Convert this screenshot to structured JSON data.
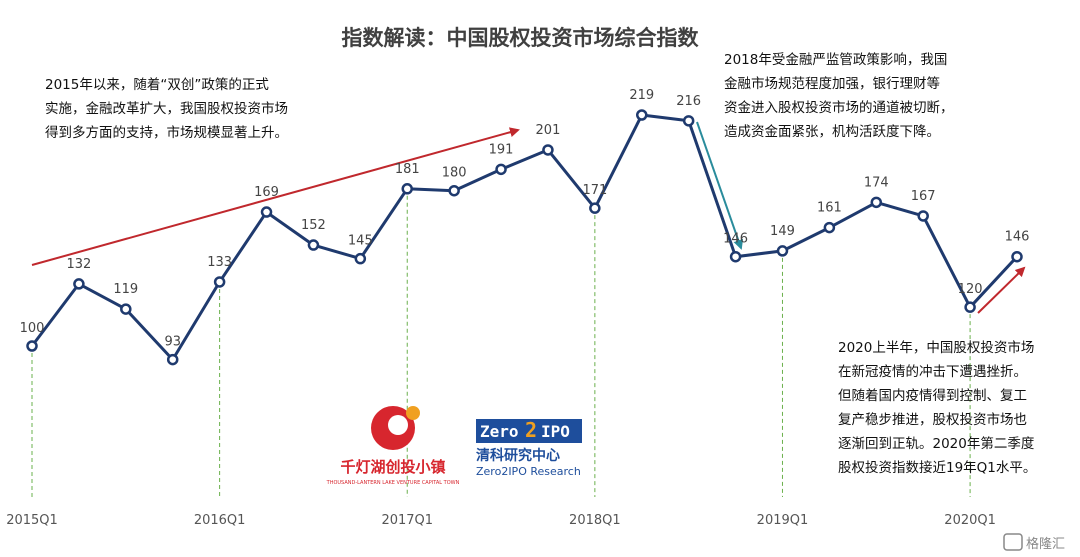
{
  "chart_data": {
    "type": "line",
    "title": "指数解读：中国股权投资市场综合指数",
    "xlabel": "",
    "ylabel": "",
    "x": [
      "2015Q1",
      "2015Q2",
      "2015Q3",
      "2015Q4",
      "2016Q1",
      "2016Q2",
      "2016Q3",
      "2016Q4",
      "2017Q1",
      "2017Q2",
      "2017Q3",
      "2017Q4",
      "2018Q1",
      "2018Q2",
      "2018Q3",
      "2018Q4",
      "2019Q1",
      "2019Q2",
      "2019Q3",
      "2019Q4",
      "2020Q1",
      "2020Q2"
    ],
    "values": [
      100,
      132,
      119,
      93,
      133,
      169,
      152,
      145,
      181,
      180,
      191,
      201,
      171,
      219,
      216,
      146,
      149,
      161,
      174,
      167,
      120,
      146
    ],
    "tick_labels": [
      "2015Q1",
      "2016Q1",
      "2017Q1",
      "2018Q1",
      "2019Q1",
      "2020Q1"
    ],
    "tick_indices": [
      0,
      4,
      8,
      12,
      16,
      20
    ],
    "series_color": "#1f3a6e",
    "guide_color": "#6ab04c",
    "grid": false,
    "annotations": [
      "2015年以来，随着“双创”政策的正式\n实施，金融改革扩大，我国股权投资市场\n得到多方面的支持，市场规模显著上升。",
      "2018年受金融严监管政策影响，我国\n金融市场规范程度加强，银行理财等\n资金进入股权投资市场的通道被切断，\n造成资金面紧张，机构活跃度下降。",
      "2020上半年，中国股权投资市场\n在新冠疫情的冲击下遭遇挫折。\n但随着国内疫情得到控制、复工\n复产稳步推进，股权投资市场也\n逐渐回到正轨。2020年第二季度\n股权投资指数接近19年Q1水平。"
    ]
  },
  "logos": {
    "left_name": "千灯湖创投小镇",
    "left_sub": "THOUSAND-LANTERN LAKE VENTURE CAPITAL TOWN",
    "right_mark_a": "Zero",
    "right_mark_b": "2",
    "right_mark_c": "IPO",
    "right_name": "清科研究中心",
    "right_sub": "Zero2IPO Research"
  },
  "watermark": "格隆汇"
}
